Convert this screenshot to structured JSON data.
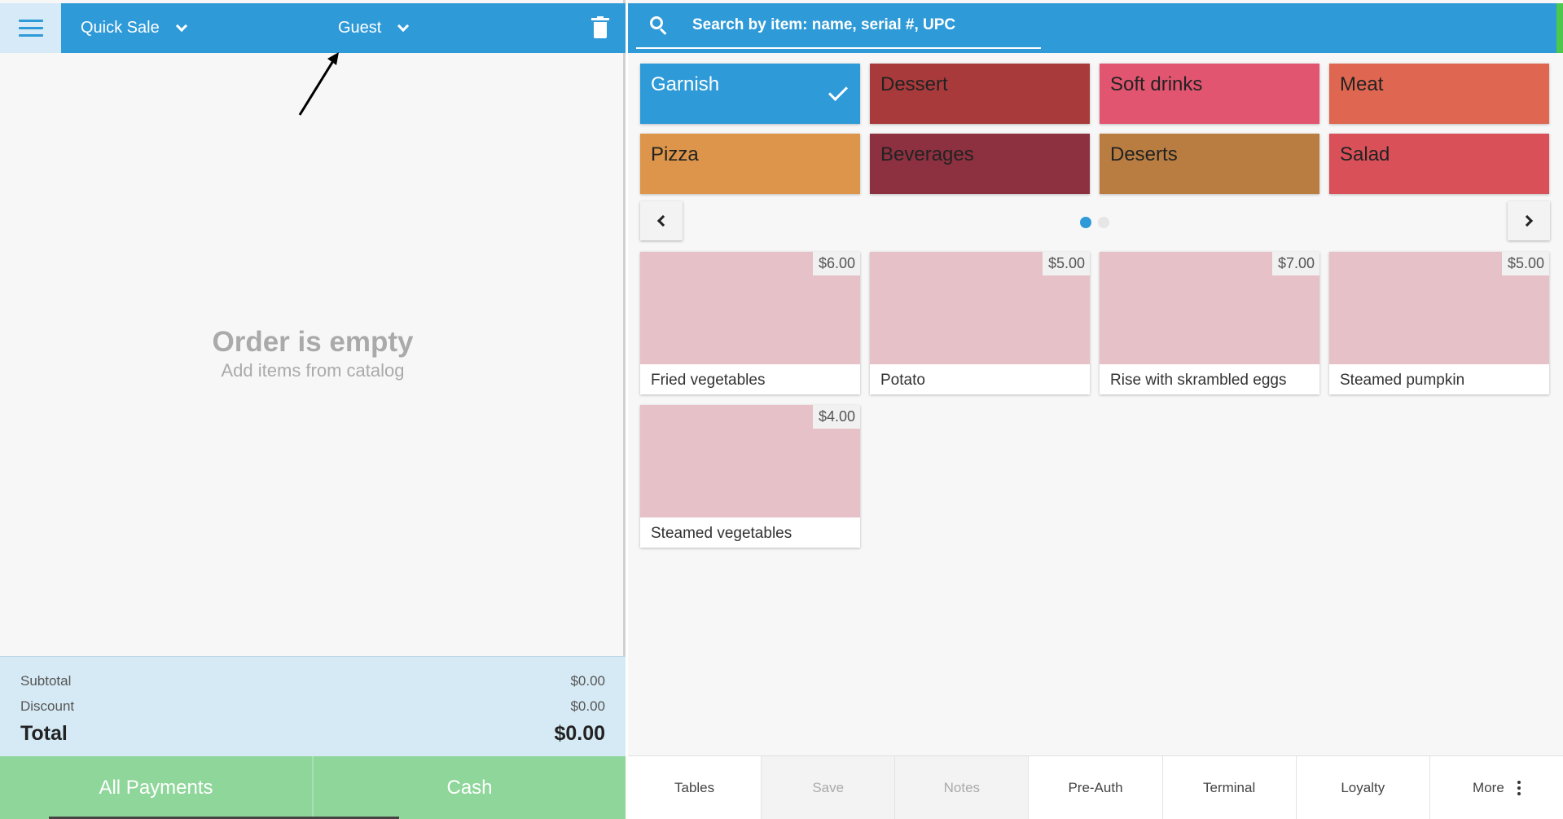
{
  "header": {
    "order_type": "Quick Sale",
    "customer": "Guest"
  },
  "order": {
    "empty_title": "Order is empty",
    "empty_subtitle": "Add items from catalog"
  },
  "totals": {
    "subtotal_label": "Subtotal",
    "subtotal_value": "$0.00",
    "discount_label": "Discount",
    "discount_value": "$0.00",
    "total_label": "Total",
    "total_value": "$0.00"
  },
  "payments": {
    "all_label": "All Payments",
    "cash_label": "Cash"
  },
  "search": {
    "placeholder": "Search by item: name, serial #, UPC"
  },
  "categories": [
    {
      "label": "Garnish",
      "color": "#2f9ad8",
      "selected": true
    },
    {
      "label": "Dessert",
      "color": "#a83a3c"
    },
    {
      "label": "Soft drinks",
      "color": "#e25570"
    },
    {
      "label": "Meat",
      "color": "#df6650"
    },
    {
      "label": "Pizza",
      "color": "#dc954a"
    },
    {
      "label": "Beverages",
      "color": "#8d3040"
    },
    {
      "label": "Deserts",
      "color": "#b97d42"
    },
    {
      "label": "Salad",
      "color": "#d95058"
    }
  ],
  "pagination": {
    "pages": 2,
    "current": 1
  },
  "items": [
    {
      "name": "Fried vegetables",
      "price": "$6.00"
    },
    {
      "name": "Potato",
      "price": "$5.00"
    },
    {
      "name": "Rise with skrambled eggs",
      "price": "$7.00"
    },
    {
      "name": "Steamed pumpkin",
      "price": "$5.00"
    },
    {
      "name": "Steamed vegetables",
      "price": "$4.00"
    }
  ],
  "actions": [
    {
      "label": "Tables",
      "enabled": true
    },
    {
      "label": "Save",
      "enabled": false
    },
    {
      "label": "Notes",
      "enabled": false
    },
    {
      "label": "Pre-Auth",
      "enabled": true
    },
    {
      "label": "Terminal",
      "enabled": true
    },
    {
      "label": "Loyalty",
      "enabled": true
    },
    {
      "label": "More",
      "enabled": true
    }
  ],
  "icons": {
    "menu": "hamburger-icon",
    "trash": "trash-icon",
    "search": "search-icon",
    "selected": "check-icon",
    "more": "kebab-icon"
  },
  "colors": {
    "primary": "#2f9ad8",
    "payment": "#8fd69b",
    "totals_bg": "#d6eaf5",
    "item_image": "#e6c1c8"
  }
}
